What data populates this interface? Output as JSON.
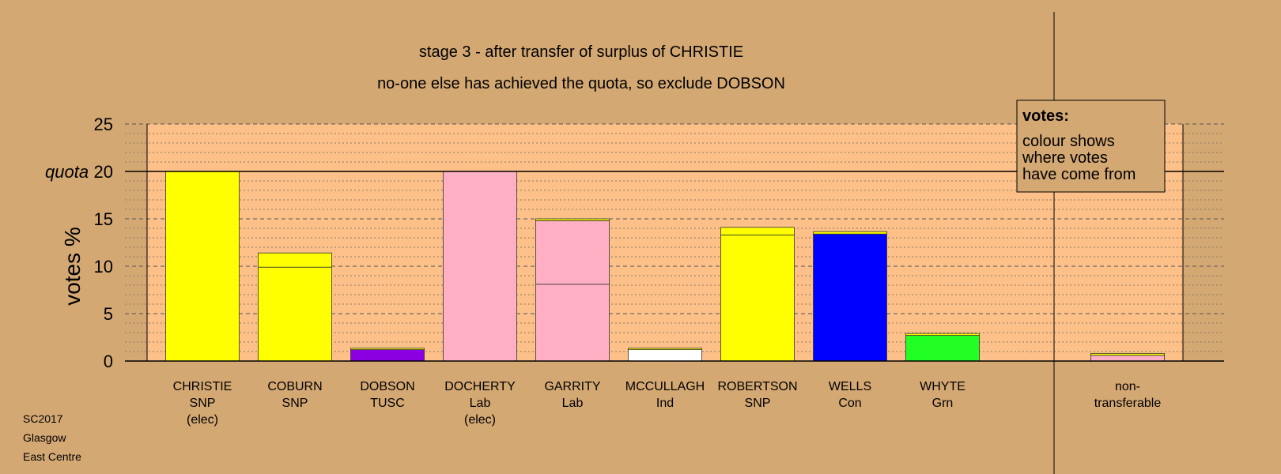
{
  "chart_data": {
    "type": "bar",
    "title": "stage 3 - after transfer of surplus of CHRISTIE",
    "subtitle": "no-one else has achieved the quota, so exclude DOBSON",
    "ylabel": "votes %",
    "ylim": [
      0,
      25
    ],
    "yticks": [
      0,
      5,
      10,
      15,
      20,
      25
    ],
    "quota": 20,
    "quota_label": "quota",
    "grid": true,
    "categories": [
      {
        "name": "CHRISTIE",
        "party": "SNP",
        "status": "(elec)"
      },
      {
        "name": "COBURN",
        "party": "SNP",
        "status": ""
      },
      {
        "name": "DOBSON",
        "party": "TUSC",
        "status": ""
      },
      {
        "name": "DOCHERTY",
        "party": "Lab",
        "status": "(elec)"
      },
      {
        "name": "GARRITY",
        "party": "Lab",
        "status": ""
      },
      {
        "name": "MCCULLAGH",
        "party": "Ind",
        "status": ""
      },
      {
        "name": "ROBERTSON",
        "party": "SNP",
        "status": ""
      },
      {
        "name": "WELLS",
        "party": "Con",
        "status": ""
      },
      {
        "name": "WHYTE",
        "party": "Grn",
        "status": ""
      },
      {
        "name": "non-",
        "party": "transferable",
        "status": ""
      }
    ],
    "segments": [
      [
        {
          "value": 20.0,
          "color": "#ffff00"
        }
      ],
      [
        {
          "value": 9.9,
          "color": "#ffff00"
        },
        {
          "value": 1.5,
          "color": "#ffff00"
        }
      ],
      [
        {
          "value": 1.2,
          "color": "#8b00e0"
        },
        {
          "value": 0.15,
          "color": "#ffff00"
        }
      ],
      [
        {
          "value": 20.0,
          "color": "#ffb0c4"
        }
      ],
      [
        {
          "value": 8.1,
          "color": "#ffb0c4"
        },
        {
          "value": 6.7,
          "color": "#ffb0c4"
        },
        {
          "value": 0.2,
          "color": "#ffff00"
        }
      ],
      [
        {
          "value": 1.2,
          "color": "#ffffff"
        },
        {
          "value": 0.15,
          "color": "#ffff00"
        }
      ],
      [
        {
          "value": 13.3,
          "color": "#ffff00"
        },
        {
          "value": 0.8,
          "color": "#ffff00"
        }
      ],
      [
        {
          "value": 13.4,
          "color": "#0000ff"
        },
        {
          "value": 0.25,
          "color": "#ffff00"
        }
      ],
      [
        {
          "value": 2.7,
          "color": "#22ff22"
        },
        {
          "value": 0.2,
          "color": "#ffff00"
        }
      ],
      [
        {
          "value": 0.6,
          "color": "#ffb0c4"
        },
        {
          "value": 0.2,
          "color": "#ffff00"
        }
      ]
    ],
    "legend": {
      "title": "votes:",
      "lines": [
        "colour shows",
        "where votes",
        "have come from"
      ],
      "position": "top-right"
    },
    "colors": {
      "background": "#d4a873",
      "plot_area": "#fcc088"
    }
  },
  "footer": {
    "lines": [
      "SC2017",
      "Glasgow",
      "East Centre"
    ]
  }
}
